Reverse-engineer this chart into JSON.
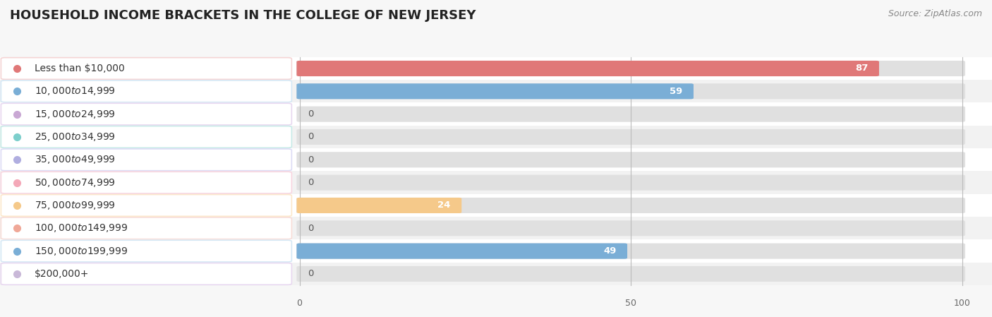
{
  "title": "Household Income Brackets in The College of New Jersey",
  "source": "Source: ZipAtlas.com",
  "categories": [
    "Less than $10,000",
    "$10,000 to $14,999",
    "$15,000 to $24,999",
    "$25,000 to $34,999",
    "$35,000 to $49,999",
    "$50,000 to $74,999",
    "$75,000 to $99,999",
    "$100,000 to $149,999",
    "$150,000 to $199,999",
    "$200,000+"
  ],
  "values": [
    87,
    59,
    0,
    0,
    0,
    0,
    24,
    0,
    49,
    0
  ],
  "bar_colors": [
    "#e07878",
    "#7aaed6",
    "#c9a8d4",
    "#7dcfcc",
    "#b0aee0",
    "#f4a8b8",
    "#f5c98a",
    "#f0a898",
    "#7aaed6",
    "#c9b8d8"
  ],
  "label_bg_colors": [
    "#f5d5d5",
    "#d5e8f5",
    "#e8d8f0",
    "#c8ebe8",
    "#dddcf5",
    "#f8d5e0",
    "#fce8cc",
    "#f8ddd8",
    "#d5e8f5",
    "#e8d8f0"
  ],
  "xlim": [
    0,
    100
  ],
  "xticks": [
    0,
    50,
    100
  ],
  "background_color": "#f7f7f7",
  "row_colors": [
    "#ffffff",
    "#f2f2f2"
  ],
  "title_fontsize": 13,
  "source_fontsize": 9,
  "label_fontsize": 10,
  "value_fontsize": 9.5,
  "bar_height": 0.6
}
